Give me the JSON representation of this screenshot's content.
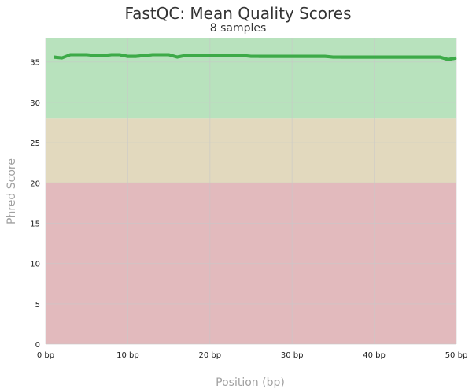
{
  "chart_data": {
    "type": "line",
    "title": "FastQC: Mean Quality Scores",
    "subtitle": "8 samples",
    "xlabel": "Position (bp)",
    "ylabel": "Phred Score",
    "xlim": [
      0,
      50
    ],
    "ylim": [
      0,
      38
    ],
    "x_ticks": [
      0,
      10,
      20,
      30,
      40,
      50
    ],
    "x_tick_labels": [
      "0 bp",
      "10 bp",
      "20 bp",
      "30 bp",
      "40 bp",
      "50 bp"
    ],
    "y_ticks": [
      0,
      5,
      10,
      15,
      20,
      25,
      30,
      35
    ],
    "y_tick_labels": [
      "0",
      "5",
      "10",
      "15",
      "20",
      "25",
      "30",
      "35"
    ],
    "grid": true,
    "bands": [
      {
        "from": 28,
        "to": 38,
        "color": "#b8e2bd"
      },
      {
        "from": 20,
        "to": 28,
        "color": "#e2d9be"
      },
      {
        "from": 0,
        "to": 20,
        "color": "#e2babd"
      }
    ],
    "series_color": "#3daa48",
    "series": [
      {
        "x": [
          1,
          2,
          3,
          4,
          5,
          6,
          7,
          8,
          9,
          10,
          11,
          12,
          13,
          14,
          15,
          16,
          17,
          18,
          19,
          20,
          21,
          22,
          23,
          24,
          25,
          26,
          27,
          28,
          29,
          30,
          31,
          32,
          33,
          34,
          35,
          36,
          37,
          38,
          39,
          40,
          41,
          42,
          43,
          44,
          45,
          46,
          47,
          48,
          49,
          50
        ],
        "values": [
          35.6,
          35.5,
          35.9,
          35.9,
          35.9,
          35.8,
          35.8,
          35.9,
          35.9,
          35.7,
          35.7,
          35.8,
          35.9,
          35.9,
          35.9,
          35.6,
          35.8,
          35.8,
          35.8,
          35.8,
          35.8,
          35.8,
          35.8,
          35.8,
          35.7,
          35.7,
          35.7,
          35.7,
          35.7,
          35.7,
          35.7,
          35.7,
          35.7,
          35.7,
          35.6,
          35.6,
          35.6,
          35.6,
          35.6,
          35.6,
          35.6,
          35.6,
          35.6,
          35.6,
          35.6,
          35.6,
          35.6,
          35.6,
          35.3,
          35.5
        ]
      },
      {
        "x": [
          1,
          2,
          3,
          4,
          5,
          6,
          7,
          8,
          9,
          10,
          11,
          12,
          13,
          14,
          15,
          16,
          17,
          18,
          19,
          20,
          21,
          22,
          23,
          24,
          25,
          26,
          27,
          28,
          29,
          30,
          31,
          32,
          33,
          34,
          35,
          36,
          37,
          38,
          39,
          40,
          41,
          42,
          43,
          44,
          45,
          46,
          47,
          48,
          49,
          50
        ],
        "values": [
          35.5,
          35.4,
          35.8,
          35.8,
          35.8,
          35.7,
          35.7,
          35.8,
          35.8,
          35.6,
          35.6,
          35.7,
          35.8,
          35.8,
          35.8,
          35.5,
          35.7,
          35.7,
          35.7,
          35.7,
          35.7,
          35.7,
          35.7,
          35.7,
          35.6,
          35.6,
          35.6,
          35.6,
          35.6,
          35.6,
          35.6,
          35.6,
          35.6,
          35.6,
          35.5,
          35.5,
          35.5,
          35.5,
          35.5,
          35.5,
          35.5,
          35.5,
          35.5,
          35.5,
          35.5,
          35.5,
          35.5,
          35.5,
          35.2,
          35.4
        ]
      },
      {
        "x": [
          1,
          2,
          3,
          4,
          5,
          6,
          7,
          8,
          9,
          10,
          11,
          12,
          13,
          14,
          15,
          16,
          17,
          18,
          19,
          20,
          21,
          22,
          23,
          24,
          25,
          26,
          27,
          28,
          29,
          30,
          31,
          32,
          33,
          34,
          35,
          36,
          37,
          38,
          39,
          40,
          41,
          42,
          43,
          44,
          45,
          46,
          47,
          48,
          49,
          50
        ],
        "values": [
          35.7,
          35.6,
          36.0,
          36.0,
          36.0,
          35.9,
          35.9,
          36.0,
          36.0,
          35.8,
          35.8,
          35.9,
          36.0,
          36.0,
          36.0,
          35.7,
          35.9,
          35.9,
          35.9,
          35.9,
          35.9,
          35.9,
          35.9,
          35.9,
          35.8,
          35.8,
          35.8,
          35.8,
          35.8,
          35.8,
          35.8,
          35.8,
          35.8,
          35.8,
          35.7,
          35.7,
          35.7,
          35.7,
          35.7,
          35.7,
          35.7,
          35.7,
          35.7,
          35.7,
          35.7,
          35.7,
          35.7,
          35.7,
          35.4,
          35.6
        ]
      },
      {
        "x": [
          1,
          2,
          3,
          4,
          5,
          6,
          7,
          8,
          9,
          10,
          11,
          12,
          13,
          14,
          15,
          16,
          17,
          18,
          19,
          20,
          21,
          22,
          23,
          24,
          25,
          26,
          27,
          28,
          29,
          30,
          31,
          32,
          33,
          34,
          35,
          36,
          37,
          38,
          39,
          40,
          41,
          42,
          43,
          44,
          45,
          46,
          47,
          48,
          49,
          50
        ],
        "values": [
          35.6,
          35.5,
          35.9,
          35.9,
          35.9,
          35.8,
          35.8,
          35.9,
          35.9,
          35.7,
          35.7,
          35.8,
          35.9,
          35.9,
          35.9,
          35.6,
          35.8,
          35.8,
          35.8,
          35.8,
          35.8,
          35.8,
          35.8,
          35.8,
          35.7,
          35.7,
          35.7,
          35.7,
          35.7,
          35.7,
          35.7,
          35.7,
          35.7,
          35.7,
          35.6,
          35.6,
          35.6,
          35.6,
          35.6,
          35.6,
          35.6,
          35.6,
          35.6,
          35.6,
          35.6,
          35.6,
          35.6,
          35.6,
          35.3,
          35.5
        ]
      },
      {
        "x": [
          1,
          2,
          3,
          4,
          5,
          6,
          7,
          8,
          9,
          10,
          11,
          12,
          13,
          14,
          15,
          16,
          17,
          18,
          19,
          20,
          21,
          22,
          23,
          24,
          25,
          26,
          27,
          28,
          29,
          30,
          31,
          32,
          33,
          34,
          35,
          36,
          37,
          38,
          39,
          40,
          41,
          42,
          43,
          44,
          45,
          46,
          47,
          48,
          49,
          50
        ],
        "values": [
          35.5,
          35.5,
          35.8,
          35.8,
          35.8,
          35.8,
          35.7,
          35.8,
          35.8,
          35.6,
          35.6,
          35.7,
          35.8,
          35.8,
          35.8,
          35.6,
          35.7,
          35.7,
          35.7,
          35.7,
          35.7,
          35.7,
          35.7,
          35.7,
          35.7,
          35.6,
          35.6,
          35.6,
          35.6,
          35.6,
          35.6,
          35.6,
          35.6,
          35.6,
          35.6,
          35.5,
          35.5,
          35.5,
          35.5,
          35.5,
          35.5,
          35.5,
          35.5,
          35.5,
          35.5,
          35.5,
          35.5,
          35.5,
          35.2,
          35.4
        ]
      },
      {
        "x": [
          1,
          2,
          3,
          4,
          5,
          6,
          7,
          8,
          9,
          10,
          11,
          12,
          13,
          14,
          15,
          16,
          17,
          18,
          19,
          20,
          21,
          22,
          23,
          24,
          25,
          26,
          27,
          28,
          29,
          30,
          31,
          32,
          33,
          34,
          35,
          36,
          37,
          38,
          39,
          40,
          41,
          42,
          43,
          44,
          45,
          46,
          47,
          48,
          49,
          50
        ],
        "values": [
          35.6,
          35.6,
          35.9,
          35.9,
          35.9,
          35.9,
          35.8,
          35.9,
          35.9,
          35.7,
          35.7,
          35.8,
          35.9,
          35.9,
          35.9,
          35.7,
          35.8,
          35.8,
          35.8,
          35.8,
          35.8,
          35.8,
          35.8,
          35.8,
          35.8,
          35.7,
          35.7,
          35.7,
          35.7,
          35.7,
          35.7,
          35.7,
          35.7,
          35.7,
          35.7,
          35.6,
          35.6,
          35.6,
          35.6,
          35.6,
          35.6,
          35.6,
          35.6,
          35.6,
          35.6,
          35.6,
          35.6,
          35.6,
          35.3,
          35.5
        ]
      },
      {
        "x": [
          1,
          2,
          3,
          4,
          5,
          6,
          7,
          8,
          9,
          10,
          11,
          12,
          13,
          14,
          15,
          16,
          17,
          18,
          19,
          20,
          21,
          22,
          23,
          24,
          25,
          26,
          27,
          28,
          29,
          30,
          31,
          32,
          33,
          34,
          35,
          36,
          37,
          38,
          39,
          40,
          41,
          42,
          43,
          44,
          45,
          46,
          47,
          48,
          49,
          50
        ],
        "values": [
          35.7,
          35.5,
          36.0,
          35.9,
          35.9,
          35.8,
          35.9,
          35.9,
          35.9,
          35.7,
          35.8,
          35.8,
          35.9,
          35.9,
          35.9,
          35.6,
          35.8,
          35.8,
          35.8,
          35.8,
          35.8,
          35.8,
          35.8,
          35.8,
          35.7,
          35.7,
          35.7,
          35.7,
          35.7,
          35.7,
          35.7,
          35.7,
          35.7,
          35.7,
          35.6,
          35.6,
          35.6,
          35.6,
          35.6,
          35.6,
          35.6,
          35.6,
          35.6,
          35.6,
          35.6,
          35.6,
          35.6,
          35.6,
          35.3,
          35.5
        ]
      },
      {
        "x": [
          1,
          2,
          3,
          4,
          5,
          6,
          7,
          8,
          9,
          10,
          11,
          12,
          13,
          14,
          15,
          16,
          17,
          18,
          19,
          20,
          21,
          22,
          23,
          24,
          25,
          26,
          27,
          28,
          29,
          30,
          31,
          32,
          33,
          34,
          35,
          36,
          37,
          38,
          39,
          40,
          41,
          42,
          43,
          44,
          45,
          46,
          47,
          48,
          49,
          50
        ],
        "values": [
          35.6,
          35.5,
          35.8,
          35.9,
          35.9,
          35.8,
          35.8,
          35.9,
          35.8,
          35.7,
          35.7,
          35.8,
          35.9,
          35.9,
          35.9,
          35.6,
          35.8,
          35.8,
          35.8,
          35.8,
          35.8,
          35.8,
          35.8,
          35.8,
          35.7,
          35.7,
          35.7,
          35.7,
          35.7,
          35.7,
          35.7,
          35.7,
          35.7,
          35.7,
          35.6,
          35.6,
          35.6,
          35.6,
          35.6,
          35.6,
          35.6,
          35.6,
          35.6,
          35.6,
          35.6,
          35.6,
          35.6,
          35.6,
          35.3,
          35.5
        ]
      }
    ]
  }
}
